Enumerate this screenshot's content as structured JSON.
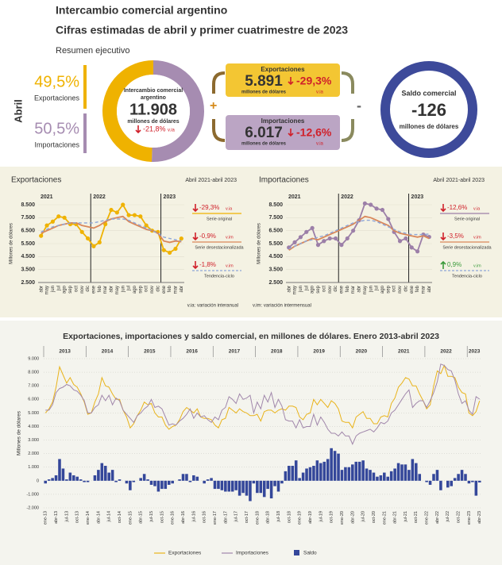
{
  "header": {
    "title": "Intercambio comercial argentino",
    "subtitle": "Cifras estimadas de abril y primer cuatrimestre de 2023",
    "section": "Resumen ejecutivo"
  },
  "summary": {
    "period": "Abril",
    "shares": {
      "values": [
        49.5,
        50.5
      ],
      "value_labels": [
        "49,5%",
        "50,5%"
      ],
      "labels": [
        "Exportaciones",
        "Importaciones"
      ],
      "colors": [
        "#efb200",
        "#a68cb1"
      ]
    },
    "total": {
      "title_lines": [
        "Intercambio comercial",
        "argentino"
      ],
      "value": "11.908",
      "unit": "millones de dólares",
      "change": "-21,8%",
      "change_unit": "v.ia"
    },
    "exports": {
      "title": "Exportaciones",
      "value": "5.891",
      "unit": "millones de dólares",
      "change": "-29,3%",
      "change_unit": "v.ia"
    },
    "imports": {
      "title": "Importaciones",
      "value": "6.017",
      "unit": "millones de dólares",
      "change": "-12,6%",
      "change_unit": "v.ia"
    },
    "balance": {
      "title": "Saldo comercial",
      "value": "-126",
      "unit": "millones de dólares"
    },
    "operators": [
      "+",
      "-"
    ]
  },
  "notes": [
    "v.ia: variación interanual",
    "v.im: variación intermensual"
  ],
  "chart_data": [
    {
      "type": "line",
      "title": "Exportaciones",
      "subtitle": "Abril 2021-abril 2023",
      "y_label": "Millones de dólares",
      "periods": [
        {
          "year": "2021",
          "months": [
            "abr",
            "may",
            "jun",
            "jul",
            "ago",
            "sep",
            "oct",
            "nov",
            "dic"
          ]
        },
        {
          "year": "2022",
          "months": [
            "ene",
            "feb",
            "mar",
            "abr",
            "may",
            "jun",
            "jul",
            "ago",
            "sep",
            "oct",
            "nov",
            "dic"
          ]
        },
        {
          "year": "2023",
          "months": [
            "ene",
            "feb",
            "mar",
            "abr"
          ]
        }
      ],
      "ylim": [
        2500,
        8500
      ],
      "yticks": [
        {
          "value": 2500,
          "label": "2.500"
        },
        {
          "value": 3500,
          "label": "3.500"
        },
        {
          "value": 4500,
          "label": "4.500"
        },
        {
          "value": 5500,
          "label": "5.500"
        },
        {
          "value": 6500,
          "label": "6.500"
        },
        {
          "value": 7500,
          "label": "7.500"
        },
        {
          "value": 8500,
          "label": "8.500"
        }
      ],
      "series": [
        {
          "name": "Serie original",
          "color": "#efb200",
          "markers": true,
          "change": "-29,3%",
          "change_unit": "v.ia",
          "values": [
            6100,
            6900,
            7200,
            7600,
            7500,
            7000,
            7000,
            6400,
            5900,
            5300,
            5600,
            7000,
            8100,
            7900,
            8500,
            7700,
            7700,
            7600,
            6900,
            6500,
            6400,
            5000,
            4800,
            5100,
            5891
          ]
        },
        {
          "name": "Serie desestacionalizada",
          "color": "#d9875a",
          "change": "-0,9%",
          "change_unit": "v.im",
          "values": [
            6300,
            6500,
            6700,
            6900,
            7000,
            7100,
            7100,
            6900,
            6800,
            6700,
            6900,
            7200,
            7400,
            7500,
            7600,
            7200,
            7000,
            6800,
            6600,
            6500,
            6300,
            5700,
            5600,
            5700,
            5650
          ]
        },
        {
          "name": "Tendencia-ciclo",
          "color": "#8ea6d8",
          "dashed": true,
          "change": "-1,8%",
          "change_unit": "v.im",
          "values": [
            6400,
            6600,
            6800,
            6900,
            7000,
            7100,
            7100,
            7100,
            7100,
            7100,
            7200,
            7300,
            7400,
            7400,
            7400,
            7300,
            7100,
            6900,
            6700,
            6500,
            6300,
            6000,
            5900,
            5800,
            5700
          ]
        }
      ]
    },
    {
      "type": "line",
      "title": "Importaciones",
      "subtitle": "Abril 2021-abril 2023",
      "y_label": "Millones de dólares",
      "periods": [
        {
          "year": "2021",
          "months": [
            "abr",
            "may",
            "jun",
            "jul",
            "ago",
            "sep",
            "oct",
            "nov",
            "dic"
          ]
        },
        {
          "year": "2022",
          "months": [
            "ene",
            "feb",
            "mar",
            "abr",
            "may",
            "jun",
            "jul",
            "ago",
            "sep",
            "oct",
            "nov",
            "dic"
          ]
        },
        {
          "year": "2023",
          "months": [
            "ene",
            "feb",
            "mar",
            "abr"
          ]
        }
      ],
      "ylim": [
        2500,
        8500
      ],
      "yticks": [
        {
          "value": 2500,
          "label": "2.500"
        },
        {
          "value": 3500,
          "label": "3.500"
        },
        {
          "value": 4500,
          "label": "4.500"
        },
        {
          "value": 5500,
          "label": "5.500"
        },
        {
          "value": 6500,
          "label": "6.500"
        },
        {
          "value": 7500,
          "label": "7.500"
        },
        {
          "value": 8500,
          "label": "8.500"
        }
      ],
      "series": [
        {
          "name": "Serie original",
          "color": "#9c7fa8",
          "markers": true,
          "change": "-12,6%",
          "change_unit": "v.ia",
          "values": [
            5200,
            5600,
            6000,
            6400,
            6700,
            5400,
            5700,
            5900,
            5900,
            5400,
            5900,
            6500,
            7300,
            8600,
            8500,
            8200,
            8100,
            7400,
            6400,
            5700,
            5900,
            5200,
            4900,
            6200,
            6017
          ]
        },
        {
          "name": "Serie desestacionalizada",
          "color": "#d9875a",
          "change": "-3,5%",
          "change_unit": "v.im",
          "values": [
            5000,
            5300,
            5500,
            5700,
            5900,
            5800,
            6000,
            6200,
            6400,
            6600,
            6800,
            7000,
            7300,
            7600,
            7500,
            7300,
            7100,
            6900,
            6500,
            6300,
            6200,
            6100,
            6000,
            6100,
            5900
          ]
        },
        {
          "name": "Tendencia-ciclo",
          "color": "#8ea6d8",
          "dashed": true,
          "change": "0,9%",
          "change_unit": "v.im",
          "values": [
            5100,
            5300,
            5500,
            5700,
            5800,
            6000,
            6100,
            6300,
            6500,
            6700,
            6900,
            7100,
            7200,
            7300,
            7300,
            7200,
            7000,
            6800,
            6600,
            6400,
            6300,
            6200,
            6200,
            6200,
            6250
          ]
        }
      ]
    },
    {
      "type": "combo",
      "title": "Exportaciones, importaciones y saldo comercial, en millones de dólares. Enero 2013-abril 2023",
      "y_label": "Millones de dólares",
      "grid": true,
      "periods": [
        {
          "year": "2013",
          "months": [
            "ene-13",
            null,
            null,
            "abr-13",
            null,
            null,
            "jul-13",
            null,
            null,
            "oct-13",
            null,
            null
          ]
        },
        {
          "year": "2014",
          "months": [
            "ene-14",
            null,
            null,
            "abr-14",
            null,
            null,
            "jul-14",
            null,
            null,
            "oct-14",
            null,
            null
          ]
        },
        {
          "year": "2015",
          "months": [
            "ene-15",
            null,
            null,
            "abr-15",
            null,
            null,
            "jul-15",
            null,
            null,
            "oct-15",
            null,
            null
          ]
        },
        {
          "year": "2016",
          "months": [
            "ene-16",
            null,
            null,
            "abr-16",
            null,
            null,
            "jul-16",
            null,
            null,
            "oct-16",
            null,
            null
          ]
        },
        {
          "year": "2017",
          "months": [
            "ene-17",
            null,
            null,
            "abr-17",
            null,
            null,
            "jul-17",
            null,
            null,
            "oct-17",
            null,
            null
          ]
        },
        {
          "year": "2018",
          "months": [
            "ene-18",
            null,
            null,
            "abr-18",
            null,
            null,
            "jul-18",
            null,
            null,
            "oct-18",
            null,
            null
          ]
        },
        {
          "year": "2019",
          "months": [
            "ene-19",
            null,
            null,
            "abr-19",
            null,
            null,
            "jul-19",
            null,
            null,
            "oct-19",
            null,
            null
          ]
        },
        {
          "year": "2020",
          "months": [
            "ene-20",
            null,
            null,
            "abr-20",
            null,
            null,
            "jul-20",
            null,
            null,
            "oct-20",
            null,
            null
          ]
        },
        {
          "year": "2021",
          "months": [
            "ene-21",
            null,
            null,
            "abr-21",
            null,
            null,
            "jul-21",
            null,
            null,
            "oct-21",
            null,
            null
          ]
        },
        {
          "year": "2022",
          "months": [
            "ene-22",
            null,
            null,
            "abr-22",
            null,
            null,
            "jul-22",
            null,
            null,
            "oct-22",
            null,
            null
          ]
        },
        {
          "year": "2023",
          "months": [
            "ene-23",
            null,
            null,
            "abr-23"
          ]
        }
      ],
      "ylim": [
        -2000,
        9000
      ],
      "yticks": [
        {
          "value": -2000,
          "label": "-2.000"
        },
        {
          "value": -1000,
          "label": "-1.000"
        },
        0,
        {
          "value": 1000,
          "label": "1.000"
        },
        {
          "value": 2000,
          "label": "2.000"
        },
        {
          "value": 3000,
          "label": "3.000"
        },
        {
          "value": 4000,
          "label": "4.000"
        },
        {
          "value": 5000,
          "label": "5.000"
        },
        {
          "value": 6000,
          "label": "6.000"
        },
        {
          "value": 7000,
          "label": "7.000"
        },
        {
          "value": 8000,
          "label": "8.000"
        },
        {
          "value": 9000,
          "label": "9.000"
        }
      ],
      "series": [
        {
          "name": "Exportaciones",
          "color": "#e9b31a",
          "kind": "line",
          "values": [
            5000,
            5300,
            5800,
            6900,
            8400,
            7800,
            7200,
            7600,
            7100,
            6900,
            6400,
            5800,
            4900,
            5000,
            5800,
            6400,
            7600,
            7000,
            6900,
            6400,
            6000,
            6000,
            5200,
            4700,
            3900,
            4200,
            4800,
            5200,
            5800,
            5600,
            5700,
            5000,
            4700,
            4700,
            4100,
            3800,
            4000,
            4100,
            4500,
            5100,
            5400,
            5200,
            5000,
            5300,
            4700,
            4600,
            4600,
            4500,
            4100,
            3900,
            4500,
            4600,
            5400,
            5200,
            5000,
            5300,
            5100,
            5000,
            4800,
            4800,
            4900,
            4400,
            5100,
            5200,
            5200,
            5000,
            5200,
            5300,
            5200,
            5500,
            5500,
            5400,
            4700,
            4500,
            4900,
            5000,
            6000,
            5600,
            6000,
            5700,
            5400,
            5900,
            5700,
            5300,
            4400,
            4300,
            4300,
            3900,
            4700,
            4900,
            5100,
            4600,
            4600,
            4200,
            4200,
            4700,
            4800,
            4700,
            5700,
            6100,
            6900,
            7200,
            7600,
            7500,
            7000,
            7000,
            6400,
            5900,
            5300,
            5600,
            7000,
            8100,
            7900,
            8500,
            7700,
            7700,
            7600,
            6900,
            6500,
            6400,
            5000,
            4800,
            5100,
            5891
          ]
        },
        {
          "name": "Importaciones",
          "color": "#a187ab",
          "kind": "line",
          "values": [
            5200,
            5200,
            5600,
            6500,
            6800,
            6900,
            7100,
            7000,
            6700,
            6600,
            6300,
            5900,
            5000,
            5000,
            5400,
            5600,
            6300,
            5900,
            6300,
            5600,
            6100,
            5900,
            5200,
            4900,
            4600,
            4300,
            4800,
            5000,
            5300,
            5500,
            6000,
            5400,
            5500,
            5300,
            4700,
            4100,
            4200,
            4100,
            4400,
            4600,
            4900,
            5300,
            4600,
            5000,
            4700,
            4800,
            4500,
            4300,
            4700,
            4500,
            5200,
            5400,
            6200,
            6000,
            5700,
            6400,
            6000,
            6100,
            6300,
            5000,
            5800,
            5300,
            6300,
            5800,
            6500,
            5400,
            6000,
            5500,
            4500,
            4400,
            4400,
            3900,
            4500,
            3900,
            4000,
            4000,
            4900,
            4100,
            4700,
            4300,
            3800,
            3500,
            3500,
            3300,
            3600,
            3300,
            3300,
            2700,
            3300,
            3500,
            3600,
            3700,
            3800,
            3600,
            3900,
            4300,
            4200,
            4400,
            5000,
            5200,
            5600,
            6000,
            6400,
            6700,
            5400,
            5700,
            5900,
            5900,
            5400,
            5900,
            6500,
            7300,
            8600,
            8500,
            8200,
            8100,
            7400,
            6400,
            5700,
            5900,
            5200,
            4900,
            6200,
            6017
          ]
        },
        {
          "name": "Saldo",
          "color": "#34479a",
          "kind": "bar",
          "values": [
            -200,
            100,
            200,
            400,
            1600,
            900,
            100,
            600,
            400,
            300,
            100,
            -100,
            -100,
            0,
            400,
            800,
            1300,
            1100,
            600,
            800,
            -100,
            100,
            0,
            -200,
            -700,
            -100,
            0,
            200,
            500,
            100,
            -300,
            -400,
            -800,
            -600,
            -600,
            -300,
            -200,
            0,
            100,
            500,
            500,
            -100,
            400,
            300,
            0,
            -200,
            100,
            200,
            -600,
            -600,
            -700,
            -800,
            -800,
            -800,
            -700,
            -1100,
            -900,
            -1100,
            -1500,
            -200,
            -900,
            -900,
            -1200,
            -600,
            -1300,
            -400,
            -800,
            -200,
            700,
            1100,
            1100,
            1500,
            200,
            600,
            900,
            1000,
            1100,
            1500,
            1300,
            1400,
            1600,
            2400,
            2200,
            2000,
            800,
            1000,
            1000,
            1200,
            1400,
            1400,
            1500,
            900,
            800,
            600,
            300,
            400,
            600,
            300,
            700,
            900,
            1300,
            1200,
            1200,
            800,
            1600,
            1300,
            500,
            0,
            -100,
            -300,
            500,
            800,
            -700,
            0,
            -500,
            -400,
            200,
            500,
            800,
            500,
            -200,
            -100,
            -1100,
            -126
          ]
        }
      ]
    }
  ]
}
